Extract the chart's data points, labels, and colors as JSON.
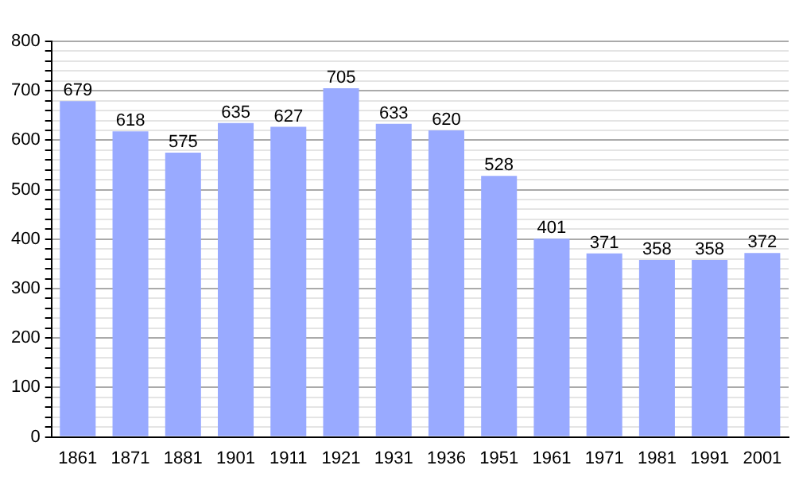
{
  "chart_data": {
    "type": "bar",
    "categories": [
      "1861",
      "1871",
      "1881",
      "1901",
      "1911",
      "1921",
      "1931",
      "1936",
      "1951",
      "1961",
      "1971",
      "1981",
      "1991",
      "2001"
    ],
    "values": [
      679,
      618,
      575,
      635,
      627,
      705,
      633,
      620,
      528,
      401,
      371,
      358,
      358,
      372
    ],
    "color": "#99aaff",
    "ylim": [
      0,
      800
    ],
    "yticks": [
      0,
      {
        "value": 20,
        "label": null
      },
      {
        "value": 40,
        "label": null
      },
      {
        "value": 60,
        "label": null
      },
      {
        "value": 80,
        "label": null
      },
      100,
      {
        "value": 120,
        "label": null
      },
      {
        "value": 140,
        "label": null
      },
      {
        "value": 160,
        "label": null
      },
      {
        "value": 180,
        "label": null
      },
      200,
      {
        "value": 220,
        "label": null
      },
      {
        "value": 240,
        "label": null
      },
      {
        "value": 260,
        "label": null
      },
      {
        "value": 280,
        "label": null
      },
      300,
      {
        "value": 320,
        "label": null
      },
      {
        "value": 340,
        "label": null
      },
      {
        "value": 360,
        "label": null
      },
      {
        "value": 380,
        "label": null
      },
      400,
      {
        "value": 420,
        "label": null
      },
      {
        "value": 440,
        "label": null
      },
      {
        "value": 460,
        "label": null
      },
      {
        "value": 480,
        "label": null
      },
      500,
      {
        "value": 520,
        "label": null
      },
      {
        "value": 540,
        "label": null
      },
      {
        "value": 560,
        "label": null
      },
      {
        "value": 580,
        "label": null
      },
      600,
      {
        "value": 620,
        "label": null
      },
      {
        "value": 640,
        "label": null
      },
      {
        "value": 660,
        "label": null
      },
      {
        "value": 680,
        "label": null
      },
      700,
      {
        "value": 720,
        "label": null
      },
      {
        "value": 740,
        "label": null
      },
      {
        "value": 760,
        "label": null
      },
      {
        "value": 780,
        "label": null
      },
      800
    ],
    "grid": "y",
    "data_labels": true
  }
}
